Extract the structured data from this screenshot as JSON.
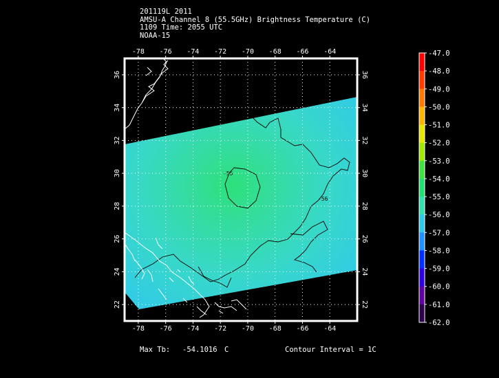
{
  "header": {
    "line1": "201119L 2011",
    "line2": "AMSU-A Channel 8 (55.5GHz) Brightness Temperature (C)",
    "line3": "1109 Time: 2055 UTC",
    "line4": "NOAA-15"
  },
  "map": {
    "lon_range": [
      -79,
      -62
    ],
    "lat_range": [
      21,
      37
    ],
    "lon_ticks": [
      "-78",
      "-76",
      "-74",
      "-72",
      "-70",
      "-68",
      "-66",
      "-64"
    ],
    "lat_ticks": [
      "22",
      "24",
      "26",
      "28",
      "30",
      "32",
      "34",
      "36"
    ],
    "contour_labels": [
      "-55",
      "-56"
    ],
    "colors": {
      "frame": "#ffffff",
      "coast": "#ffffff",
      "contour": "#000000",
      "grid": "#ffffff"
    }
  },
  "colorbar": {
    "labels": [
      "-47.0",
      "-48.0",
      "-49.0",
      "-50.0",
      "-51.0",
      "-52.0",
      "-53.0",
      "-54.0",
      "-55.0",
      "-56.0",
      "-57.0",
      "-58.0",
      "-59.0",
      "-60.0",
      "-61.0",
      "-62.0"
    ],
    "colors": [
      "#ff0000",
      "#ff3c00",
      "#ff7a00",
      "#ffb400",
      "#e6e600",
      "#a0e600",
      "#40e040",
      "#20e070",
      "#30e0b0",
      "#30c8e8",
      "#2090ff",
      "#0030ff",
      "#3000e0",
      "#6000a0",
      "#300050",
      "#ffffff"
    ]
  },
  "footer": {
    "max_label": "Max Tb:",
    "max_value": "-54.1016",
    "max_unit": "C",
    "contour_interval": "Contour Interval = 1C"
  }
}
